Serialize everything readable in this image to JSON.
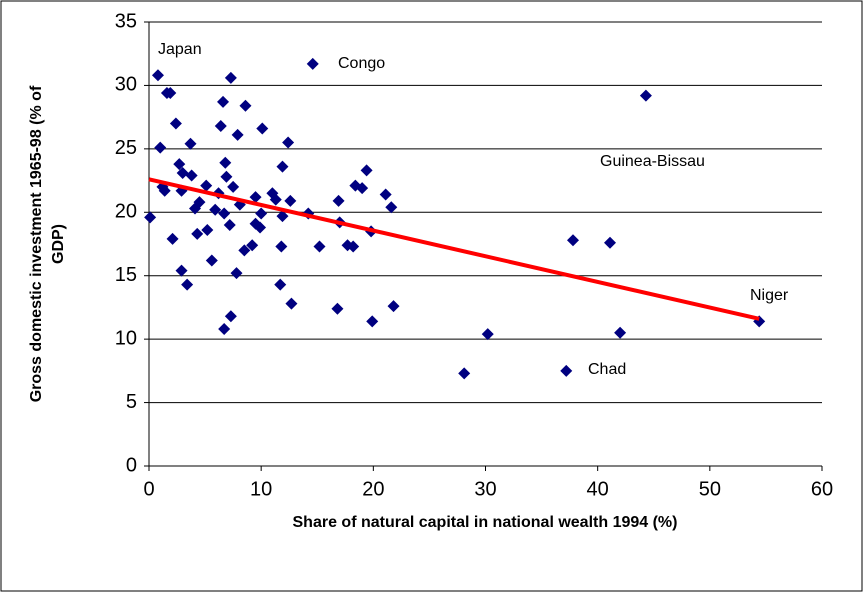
{
  "chart_data": {
    "type": "scatter",
    "xlabel": "Share of natural capital in national wealth 1994 (%)",
    "ylabel": [
      "Gross domestic investment 1965-98 (% of",
      "GDP)"
    ],
    "xlim": [
      0,
      60
    ],
    "xticks": [
      0,
      10,
      20,
      30,
      40,
      50,
      60
    ],
    "ylim": [
      0,
      35
    ],
    "yticks": [
      0,
      5,
      10,
      15,
      20,
      25,
      30,
      35
    ],
    "grid": true,
    "color": "#000080",
    "x": [
      0.8,
      1.6,
      1.9,
      2.4,
      1.0,
      0.1,
      1.4,
      1.2,
      2.1,
      2.9,
      2.7,
      3.0,
      2.9,
      3.4,
      3.7,
      3.8,
      4.1,
      4.5,
      4.3,
      5.2,
      5.1,
      5.6,
      5.9,
      6.2,
      6.4,
      6.6,
      6.8,
      6.9,
      6.7,
      6.7,
      7.3,
      7.3,
      7.5,
      7.2,
      7.8,
      7.9,
      8.1,
      8.6,
      8.5,
      9.2,
      9.5,
      9.5,
      10.1,
      10.0,
      9.9,
      11.0,
      11.3,
      11.7,
      11.9,
      11.9,
      11.8,
      12.4,
      12.6,
      12.7,
      14.2,
      14.6,
      15.2,
      16.8,
      16.9,
      17.0,
      17.7,
      18.2,
      18.4,
      19.0,
      19.4,
      19.8,
      19.9,
      21.1,
      21.6,
      21.8,
      28.1,
      30.2,
      37.2,
      37.8,
      41.1,
      42.0,
      44.3,
      54.4
    ],
    "values": [
      30.8,
      29.4,
      29.4,
      27.0,
      25.1,
      19.6,
      21.7,
      22.0,
      17.9,
      21.7,
      23.8,
      23.1,
      15.4,
      14.3,
      25.4,
      22.9,
      20.3,
      20.8,
      18.3,
      18.6,
      22.1,
      16.2,
      20.2,
      21.5,
      26.8,
      28.7,
      23.9,
      22.8,
      19.9,
      10.8,
      30.6,
      11.8,
      22.0,
      19.0,
      15.2,
      26.1,
      20.6,
      28.4,
      17.0,
      17.4,
      19.1,
      21.2,
      26.6,
      19.9,
      18.8,
      21.5,
      21.0,
      14.3,
      23.6,
      19.7,
      17.3,
      25.5,
      20.9,
      12.8,
      19.9,
      31.7,
      17.3,
      12.4,
      20.9,
      19.2,
      17.4,
      17.3,
      22.1,
      21.9,
      23.3,
      18.5,
      11.4,
      21.4,
      20.4,
      12.6,
      7.3,
      10.4,
      7.5,
      17.8,
      17.6,
      10.5,
      29.2,
      11.4
    ],
    "trendline": {
      "x": [
        0,
        54.4
      ],
      "values": [
        22.6,
        11.6
      ],
      "color": "#ff0000"
    },
    "annotations": [
      "Japan",
      "Congo",
      "Guinea-Bissau",
      "Niger",
      "Chad"
    ]
  }
}
